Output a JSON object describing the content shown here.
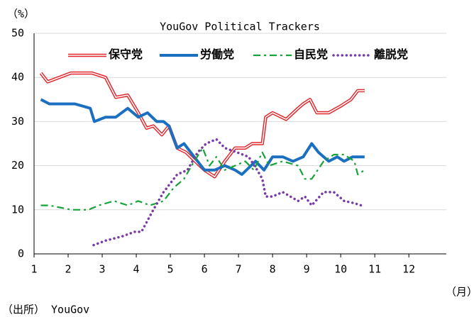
{
  "chart_data": {
    "type": "line",
    "title": "YouGov Political Trackers",
    "y_label": "（%）",
    "x_label": "（月）",
    "source": "（出所） YouGov",
    "xlim": [
      1,
      13.1
    ],
    "xticks": [
      1,
      2,
      3,
      4,
      5,
      6,
      7,
      8,
      9,
      10,
      11,
      12
    ],
    "ylim": [
      0,
      50
    ],
    "yticks": [
      0,
      10,
      20,
      30,
      40,
      50
    ],
    "grid": true,
    "legend": "top",
    "series": [
      {
        "name": "保守党",
        "color": "#e0262b",
        "style": "double",
        "x": [
          1.2,
          1.4,
          2.08,
          2.7,
          3.1,
          3.4,
          3.75,
          4.06,
          4.3,
          4.5,
          4.75,
          4.96,
          5.2,
          5.46,
          5.73,
          6.0,
          6.3,
          6.6,
          6.9,
          7.2,
          7.4,
          7.7,
          7.8,
          8.0,
          8.4,
          8.75,
          8.9,
          9.1,
          9.3,
          9.65,
          10.0,
          10.3,
          10.5,
          10.7
        ],
        "values": [
          41,
          39,
          41,
          41,
          40,
          35.5,
          36,
          32,
          28.5,
          29,
          27,
          29,
          24,
          23,
          21,
          19,
          17.5,
          21,
          24,
          24,
          25,
          25,
          31,
          32,
          30.5,
          33,
          34,
          35,
          32,
          32,
          33.5,
          35,
          37,
          37
        ]
      },
      {
        "name": "労働党",
        "color": "#1b6fc0",
        "style": "solid",
        "x": [
          1.2,
          1.45,
          2.2,
          2.65,
          2.77,
          3.1,
          3.4,
          3.75,
          4.06,
          4.33,
          4.6,
          4.8,
          4.96,
          5.2,
          5.4,
          5.7,
          6.0,
          6.3,
          6.6,
          6.9,
          7.1,
          7.5,
          7.75,
          8.0,
          8.3,
          8.6,
          8.9,
          9.15,
          9.35,
          9.65,
          9.9,
          10.1,
          10.35,
          10.7
        ],
        "values": [
          35,
          34,
          34,
          33,
          30,
          31,
          31,
          33,
          31,
          32,
          30,
          30,
          29,
          24,
          25,
          22,
          19,
          19,
          20,
          19,
          18,
          21,
          19,
          22,
          22,
          21,
          22,
          25,
          23,
          21,
          22,
          21,
          22,
          22
        ]
      },
      {
        "name": "自民党",
        "color": "#17a338",
        "style": "dashdot",
        "x": [
          1.2,
          1.45,
          2.1,
          2.6,
          2.9,
          3.35,
          3.75,
          4.06,
          4.4,
          4.8,
          5.1,
          5.4,
          5.7,
          5.95,
          6.15,
          6.35,
          6.6,
          6.9,
          7.2,
          7.45,
          7.7,
          7.9,
          8.3,
          8.75,
          8.95,
          9.15,
          9.5,
          9.8,
          10.1,
          10.4,
          10.5,
          10.7
        ],
        "values": [
          11,
          11,
          10,
          10,
          11,
          12,
          11,
          12,
          11,
          12,
          15,
          17,
          21,
          24,
          20,
          22,
          19,
          20,
          21,
          19,
          23,
          20,
          21,
          20,
          17,
          17,
          21,
          22.5,
          22.5,
          21,
          18,
          19
        ]
      },
      {
        "name": "離脱党",
        "color": "#7a3aa6",
        "style": "dotted",
        "x": [
          2.75,
          3.1,
          3.6,
          3.95,
          4.15,
          4.5,
          4.8,
          5.2,
          5.5,
          5.8,
          6.05,
          6.35,
          6.6,
          6.96,
          7.3,
          7.55,
          7.7,
          7.8,
          8.0,
          8.3,
          8.75,
          8.95,
          9.15,
          9.5,
          9.8,
          10.1,
          10.4,
          10.6
        ],
        "values": [
          2,
          3,
          4,
          5,
          5,
          10,
          14,
          18,
          19,
          23,
          25,
          26,
          24,
          23,
          22,
          19,
          17,
          13,
          13,
          14,
          12,
          13,
          11,
          14,
          14,
          12,
          11.5,
          11
        ]
      }
    ]
  }
}
